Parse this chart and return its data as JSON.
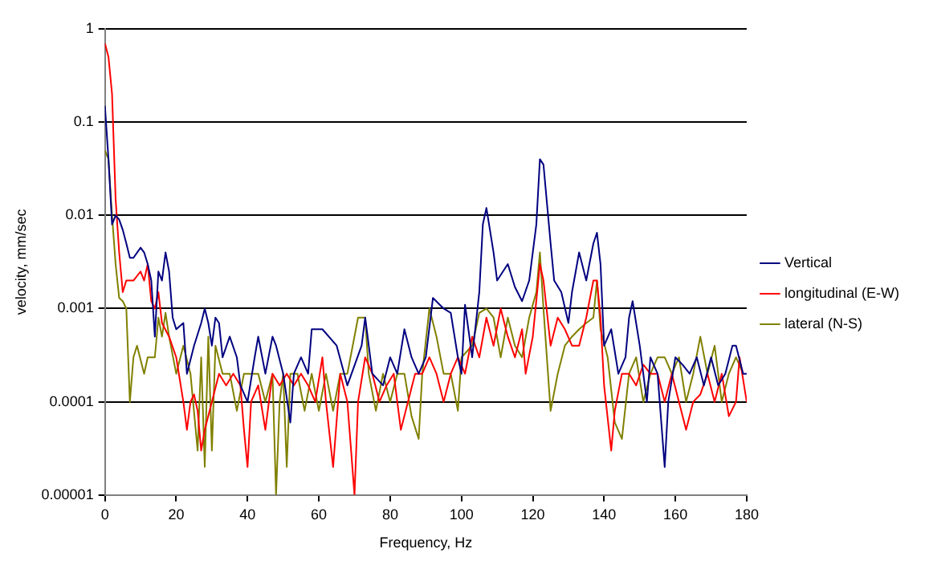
{
  "chart_data": {
    "type": "line",
    "xlabel": "Frequency, Hz",
    "ylabel": "velocity, mm/sec",
    "log": "y",
    "grid": "y",
    "legend": "right",
    "marker": "none",
    "line_style": "solid",
    "xlim": [
      0,
      180
    ],
    "xticks": [
      0,
      20,
      40,
      60,
      80,
      100,
      120,
      140,
      160,
      180
    ],
    "ylim": [
      1e-05,
      1
    ],
    "yticks": [
      {
        "value": 1e-05,
        "label": "0.00001"
      },
      0.0001,
      0.001,
      0.01,
      0.1,
      1
    ],
    "series": [
      {
        "name": "Vertical",
        "color": "#000080",
        "x": [
          0,
          1,
          2,
          3,
          4,
          5,
          6,
          7,
          8,
          10,
          11,
          12,
          13,
          14,
          15,
          16,
          17,
          18,
          19,
          20,
          22,
          23,
          25,
          27,
          28,
          29,
          30,
          31,
          32,
          33,
          35,
          37,
          38,
          40,
          42,
          43,
          45,
          47,
          48,
          50,
          52,
          53,
          55,
          57,
          58,
          61,
          65,
          68,
          72,
          73,
          75,
          78,
          80,
          82,
          84,
          86,
          88,
          90,
          92,
          95,
          97,
          99,
          100,
          101,
          103,
          105,
          106,
          107,
          109,
          110,
          113,
          115,
          117,
          119,
          121,
          122,
          123,
          125,
          126,
          128,
          130,
          131,
          133,
          135,
          137,
          138,
          139,
          140,
          142,
          144,
          146,
          147,
          148,
          150,
          152,
          153,
          155,
          157,
          158,
          160,
          162,
          164,
          166,
          168,
          170,
          172,
          174,
          176,
          177,
          179,
          180
        ],
        "values": [
          0.15,
          0.04,
          0.008,
          0.01,
          0.009,
          0.007,
          0.005,
          0.0035,
          0.0035,
          0.0045,
          0.004,
          0.003,
          0.002,
          0.0005,
          0.0025,
          0.002,
          0.004,
          0.0025,
          0.0008,
          0.0006,
          0.0007,
          0.0002,
          0.0004,
          0.0007,
          0.001,
          0.0007,
          0.0004,
          0.0008,
          0.0007,
          0.0003,
          0.0005,
          0.0003,
          0.00015,
          0.0001,
          0.0003,
          0.0005,
          0.0002,
          0.0005,
          0.0004,
          0.0002,
          6e-05,
          0.0002,
          0.0003,
          0.0002,
          0.0006,
          0.0006,
          0.0004,
          0.00015,
          0.0004,
          0.0008,
          0.0002,
          0.00015,
          0.0003,
          0.0002,
          0.0006,
          0.0003,
          0.0002,
          0.0003,
          0.0013,
          0.001,
          0.0009,
          0.0003,
          0.0002,
          0.0011,
          0.0003,
          0.0015,
          0.008,
          0.012,
          0.004,
          0.002,
          0.003,
          0.0017,
          0.0012,
          0.002,
          0.008,
          0.04,
          0.035,
          0.005,
          0.002,
          0.0015,
          0.0007,
          0.0015,
          0.004,
          0.002,
          0.005,
          0.0065,
          0.003,
          0.0004,
          0.0006,
          0.0002,
          0.0003,
          0.0008,
          0.0012,
          0.0004,
          0.0001,
          0.0003,
          0.0002,
          2e-05,
          0.0001,
          0.0003,
          0.00025,
          0.0002,
          0.0003,
          0.00015,
          0.0003,
          0.00015,
          0.0002,
          0.0004,
          0.0004,
          0.0002,
          0.0002
        ]
      },
      {
        "name": "longitudinal (E-W)",
        "color": "#ff0000",
        "x": [
          0,
          1,
          2,
          3,
          4,
          5,
          6,
          8,
          10,
          11,
          12,
          13,
          14,
          15,
          16,
          18,
          20,
          22,
          23,
          24,
          25,
          26,
          27,
          28,
          30,
          32,
          34,
          36,
          38,
          39,
          40,
          41,
          43,
          45,
          47,
          49,
          51,
          53,
          55,
          57,
          59,
          61,
          62,
          64,
          66,
          68,
          70,
          71,
          73,
          75,
          77,
          79,
          81,
          83,
          85,
          87,
          89,
          91,
          93,
          95,
          97,
          99,
          101,
          103,
          105,
          107,
          109,
          111,
          113,
          115,
          117,
          118,
          120,
          122,
          123,
          125,
          127,
          129,
          131,
          133,
          135,
          137,
          138,
          139,
          140,
          142,
          143,
          145,
          147,
          149,
          151,
          153,
          155,
          157,
          159,
          161,
          163,
          165,
          167,
          169,
          171,
          173,
          175,
          177,
          178,
          180
        ],
        "values": [
          0.7,
          0.5,
          0.2,
          0.015,
          0.004,
          0.0015,
          0.002,
          0.002,
          0.0025,
          0.002,
          0.003,
          0.0012,
          0.001,
          0.0015,
          0.0007,
          0.0005,
          0.0003,
          0.0001,
          5e-05,
          0.0001,
          0.00012,
          8e-05,
          3e-05,
          5e-05,
          0.0001,
          0.0002,
          0.00015,
          0.0002,
          0.00015,
          5e-05,
          2e-05,
          0.0001,
          0.00015,
          5e-05,
          0.0002,
          0.00015,
          0.0002,
          0.00015,
          0.0002,
          0.00015,
          0.0001,
          0.0003,
          0.0001,
          2e-05,
          0.0002,
          0.0001,
          1e-05,
          0.0001,
          0.0003,
          0.0002,
          0.0001,
          0.00015,
          0.0002,
          5e-05,
          0.0001,
          0.0002,
          0.0002,
          0.0003,
          0.0002,
          0.0001,
          0.0002,
          0.0003,
          0.0002,
          0.0005,
          0.0003,
          0.0008,
          0.0004,
          0.001,
          0.0005,
          0.0003,
          0.0006,
          0.0002,
          0.0005,
          0.003,
          0.002,
          0.0004,
          0.0008,
          0.0006,
          0.0004,
          0.0004,
          0.0008,
          0.002,
          0.002,
          0.0008,
          0.00015,
          3e-05,
          8e-05,
          0.0002,
          0.0002,
          0.00015,
          0.00025,
          0.0002,
          0.0002,
          0.0001,
          0.0002,
          0.0001,
          5e-05,
          0.0001,
          0.00012,
          0.0002,
          0.0001,
          0.0002,
          7e-05,
          0.0001,
          0.0003,
          0.0001
        ]
      },
      {
        "name": "lateral (N-S)",
        "color": "#808000",
        "x": [
          0,
          1,
          2,
          3,
          4,
          5,
          6,
          7,
          8,
          9,
          11,
          12,
          14,
          15,
          16,
          17,
          18,
          20,
          22,
          24,
          26,
          27,
          28,
          29,
          30,
          31,
          33,
          35,
          37,
          39,
          41,
          43,
          45,
          47,
          48,
          49,
          50,
          51,
          52,
          54,
          56,
          58,
          60,
          62,
          64,
          66,
          68,
          71,
          73,
          74,
          76,
          78,
          80,
          82,
          84,
          86,
          88,
          89,
          91,
          93,
          95,
          97,
          99,
          100,
          103,
          105,
          107,
          109,
          111,
          113,
          115,
          117,
          119,
          121,
          122,
          123,
          125,
          127,
          129,
          131,
          133,
          135,
          137,
          138,
          139,
          141,
          143,
          145,
          147,
          149,
          151,
          153,
          155,
          157,
          159,
          161,
          163,
          165,
          167,
          169,
          171,
          173,
          175,
          177,
          179
        ],
        "values": [
          0.05,
          0.04,
          0.01,
          0.003,
          0.0013,
          0.0012,
          0.001,
          0.0001,
          0.0003,
          0.0004,
          0.0002,
          0.0003,
          0.0003,
          0.0008,
          0.0005,
          0.0009,
          0.0005,
          0.0002,
          0.0004,
          0.0002,
          3e-05,
          0.0003,
          2e-05,
          0.0005,
          3e-05,
          0.0004,
          0.0002,
          0.0002,
          8e-05,
          0.0002,
          0.0002,
          0.0002,
          0.0001,
          0.0002,
          1e-05,
          0.0001,
          0.0002,
          2e-05,
          0.0002,
          0.0002,
          8e-05,
          0.0002,
          8e-05,
          0.0002,
          8e-05,
          0.0002,
          0.0002,
          0.0008,
          0.0008,
          0.0002,
          8e-05,
          0.0002,
          0.0001,
          0.0002,
          0.0002,
          7e-05,
          4e-05,
          0.0002,
          0.001,
          0.0005,
          0.0002,
          0.0002,
          8e-05,
          0.0003,
          0.0004,
          0.0009,
          0.001,
          0.0008,
          0.0003,
          0.0008,
          0.0004,
          0.0003,
          0.0008,
          0.0015,
          0.004,
          0.001,
          8e-05,
          0.0002,
          0.0004,
          0.0005,
          0.0006,
          0.0007,
          0.0008,
          0.002,
          0.0006,
          0.0003,
          6e-05,
          4e-05,
          0.0002,
          0.0003,
          0.0001,
          0.0002,
          0.0003,
          0.0003,
          0.0002,
          0.0003,
          0.0001,
          0.0002,
          0.0005,
          0.0002,
          0.0004,
          0.0001,
          0.0002,
          0.0003,
          0.0002
        ]
      }
    ]
  }
}
